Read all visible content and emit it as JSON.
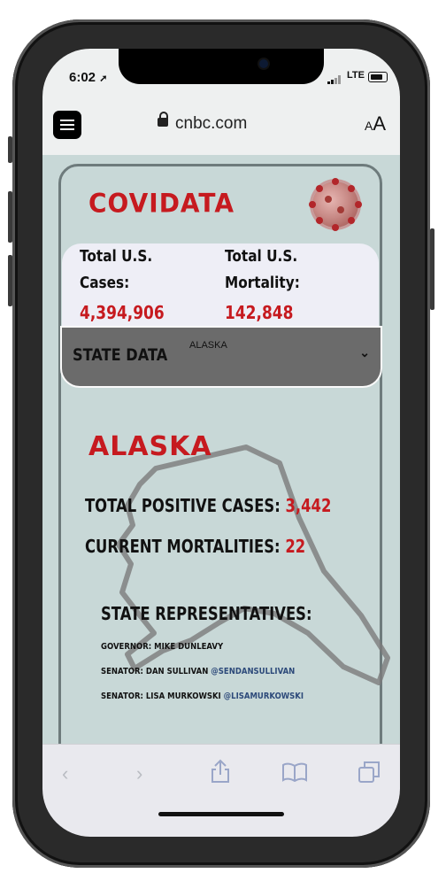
{
  "status": {
    "time": "6:02",
    "network": "LTE"
  },
  "browser": {
    "url": "cnbc.com",
    "text_size_label_small": "A",
    "text_size_label_large": "A"
  },
  "page": {
    "logo": "COVIDATA",
    "totals": {
      "cases_label_line1": "Total U.S.",
      "cases_label_line2": "Cases:",
      "cases_value": "4,394,906",
      "mortality_label_line1": "Total U.S.",
      "mortality_label_line2": "Mortality:",
      "mortality_value": "142,848"
    },
    "state_select": {
      "label": "STATE DATA",
      "selected": "ALASKA"
    },
    "state": {
      "name": "ALASKA",
      "positive_label": "TOTAL POSITIVE CASES:",
      "positive_value": "3,442",
      "mortality_label": "CURRENT MORTALITIES:",
      "mortality_value": "22"
    },
    "representatives": {
      "title": "STATE REPRESENTATIVES:",
      "governor": "GOVERNOR: MIKE DUNLEAVY",
      "senator1": "SENATOR: DAN SULLIVAN",
      "senator1_handle": "@SENDANSULLIVAN",
      "senator2": "SENATOR: LISA MURKOWSKI",
      "senator2_handle": "@LISAMURKOWSKI"
    }
  },
  "colors": {
    "accent_red": "#c61a1f",
    "page_bg": "#c8d8d7",
    "select_bg": "#6b6b6b"
  }
}
